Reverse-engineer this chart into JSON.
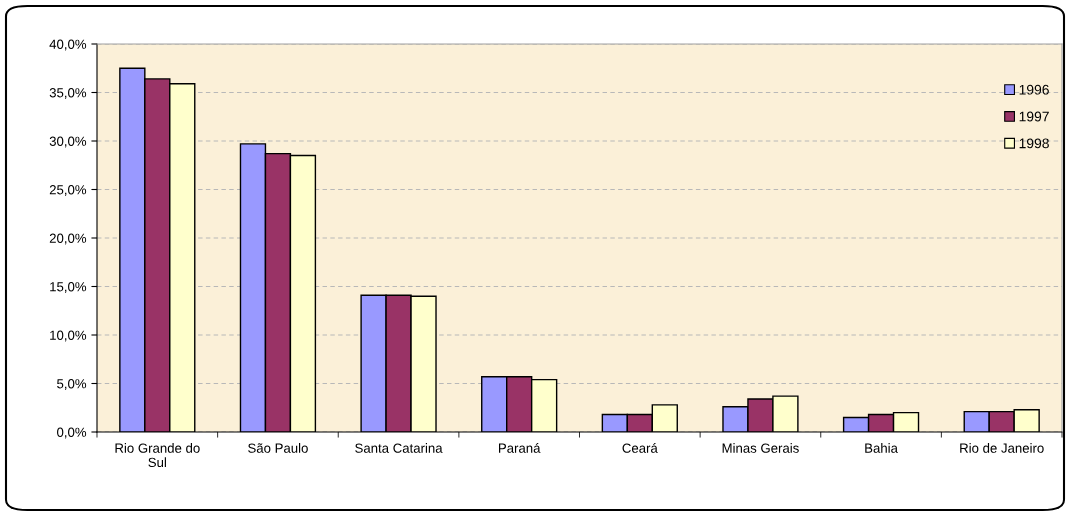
{
  "chart_data": {
    "type": "bar",
    "categories": [
      "Rio Grande do\nSul",
      "São Paulo",
      "Santa Catarina",
      "Paraná",
      "Ceará",
      "Minas Gerais",
      "Bahia",
      "Rio de Janeiro"
    ],
    "series": [
      {
        "name": "1996",
        "color": "#9999ff",
        "values": [
          37.5,
          29.7,
          14.1,
          5.7,
          1.8,
          2.6,
          1.5,
          2.1
        ]
      },
      {
        "name": "1997",
        "color": "#993366",
        "values": [
          36.4,
          28.7,
          14.1,
          5.7,
          1.8,
          3.4,
          1.8,
          2.1
        ]
      },
      {
        "name": "1998",
        "color": "#ffffcc",
        "values": [
          35.9,
          28.5,
          14.0,
          5.4,
          2.8,
          3.7,
          2.0,
          2.3
        ]
      }
    ],
    "ylim": [
      0,
      40
    ],
    "yticks": [
      {
        "value": 0,
        "label": "0,0%"
      },
      {
        "value": 5,
        "label": "5,0%"
      },
      {
        "value": 10,
        "label": "10,0%"
      },
      {
        "value": 15,
        "label": "15,0%"
      },
      {
        "value": 20,
        "label": "20,0%"
      },
      {
        "value": 25,
        "label": "25,0%"
      },
      {
        "value": 30,
        "label": "30,0%"
      },
      {
        "value": 35,
        "label": "35,0%"
      },
      {
        "value": 40,
        "label": "40,0%"
      }
    ],
    "grid": "y",
    "legend": "right"
  }
}
